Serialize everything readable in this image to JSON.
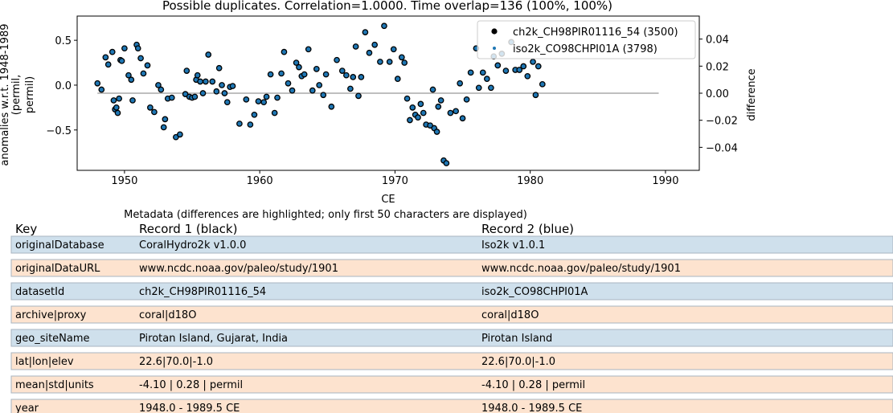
{
  "chart_data": {
    "type": "scatter",
    "title": "Possible duplicates. Correlation=1.0000. Time overlap=136 (100%, 100%)",
    "xlabel": "CE",
    "ylabel_lines": [
      "anomalies w.r.t. 1948-1989",
      "(permil,",
      "permil)"
    ],
    "y2label": "difference",
    "xlim": [
      1946.5,
      1992.5
    ],
    "ylim": [
      -0.95,
      0.77
    ],
    "y2lim": [
      -0.057,
      0.057
    ],
    "xticks": [
      1950,
      1960,
      1970,
      1980,
      1990
    ],
    "yticks": [
      0.5,
      0.0,
      -0.5
    ],
    "ytick_labels": [
      "0.5",
      "0.0",
      "−0.5"
    ],
    "y2ticks": [
      0.04,
      0.02,
      0.0,
      -0.02,
      -0.04
    ],
    "y2tick_labels": [
      "0.04",
      "0.02",
      "0.00",
      "−0.02",
      "−0.04"
    ],
    "legend_position": "top-right",
    "series": [
      {
        "name": "ch2k_CH98PIR01116_54 (3500)",
        "color": "#000000",
        "marker": "circle-outline"
      },
      {
        "name": "iso2k_CO98CHPI01A (3798)",
        "color": "#1f77b4",
        "marker": "dot"
      }
    ],
    "difference_line": {
      "x": [
        1948.0,
        1989.5
      ],
      "y": [
        0.0,
        0.0
      ],
      "color": "#aaaaaa"
    },
    "points": [
      [
        1948.0,
        0.02
      ],
      [
        1948.3,
        -0.05
      ],
      [
        1948.6,
        0.31
      ],
      [
        1948.8,
        0.23
      ],
      [
        1949.1,
        0.37
      ],
      [
        1949.2,
        -0.17
      ],
      [
        1949.3,
        -0.27
      ],
      [
        1949.4,
        -0.25
      ],
      [
        1949.5,
        -0.31
      ],
      [
        1949.6,
        -0.15
      ],
      [
        1949.7,
        0.28
      ],
      [
        1949.8,
        0.27
      ],
      [
        1950.0,
        0.41
      ],
      [
        1950.3,
        0.11
      ],
      [
        1950.5,
        0.06
      ],
      [
        1950.6,
        -0.17
      ],
      [
        1950.9,
        0.45
      ],
      [
        1951.0,
        0.41
      ],
      [
        1951.2,
        0.3
      ],
      [
        1951.4,
        0.13
      ],
      [
        1951.7,
        0.22
      ],
      [
        1951.9,
        -0.25
      ],
      [
        1952.2,
        -0.3
      ],
      [
        1952.5,
        0.0
      ],
      [
        1952.7,
        -0.05
      ],
      [
        1952.9,
        -0.47
      ],
      [
        1953.0,
        -0.38
      ],
      [
        1953.2,
        -0.15
      ],
      [
        1953.5,
        -0.14
      ],
      [
        1953.8,
        -0.58
      ],
      [
        1954.1,
        -0.55
      ],
      [
        1954.5,
        -0.1
      ],
      [
        1954.6,
        0.16
      ],
      [
        1954.8,
        -0.13
      ],
      [
        1955.0,
        -0.14
      ],
      [
        1955.2,
        -0.13
      ],
      [
        1955.3,
        0.06
      ],
      [
        1955.4,
        0.11
      ],
      [
        1955.6,
        0.04
      ],
      [
        1955.8,
        -0.09
      ],
      [
        1956.0,
        0.04
      ],
      [
        1956.2,
        0.34
      ],
      [
        1956.5,
        0.04
      ],
      [
        1956.8,
        -0.07
      ],
      [
        1957.0,
        0.19
      ],
      [
        1957.2,
        0.0
      ],
      [
        1957.4,
        -0.09
      ],
      [
        1957.6,
        -0.19
      ],
      [
        1957.8,
        -0.02
      ],
      [
        1958.0,
        -0.01
      ],
      [
        1958.5,
        -0.43
      ],
      [
        1959.0,
        -0.16
      ],
      [
        1959.3,
        -0.44
      ],
      [
        1959.6,
        -0.33
      ],
      [
        1959.9,
        -0.18
      ],
      [
        1960.3,
        -0.19
      ],
      [
        1960.5,
        -0.13
      ],
      [
        1960.8,
        0.12
      ],
      [
        1961.1,
        -0.31
      ],
      [
        1961.3,
        -0.14
      ],
      [
        1961.6,
        0.13
      ],
      [
        1961.8,
        0.37
      ],
      [
        1962.1,
        0.02
      ],
      [
        1962.4,
        -0.06
      ],
      [
        1962.7,
        0.25
      ],
      [
        1962.9,
        0.2
      ],
      [
        1963.1,
        0.1
      ],
      [
        1963.3,
        0.12
      ],
      [
        1963.6,
        0.4
      ],
      [
        1963.9,
        -0.06
      ],
      [
        1964.2,
        0.18
      ],
      [
        1964.4,
        0.0
      ],
      [
        1964.7,
        -0.11
      ],
      [
        1964.9,
        0.12
      ],
      [
        1965.3,
        -0.24
      ],
      [
        1965.7,
        0.28
      ],
      [
        1966.1,
        0.16
      ],
      [
        1966.4,
        0.11
      ],
      [
        1966.7,
        -0.04
      ],
      [
        1966.9,
        0.09
      ],
      [
        1967.1,
        0.43
      ],
      [
        1967.3,
        -0.12
      ],
      [
        1967.5,
        0.09
      ],
      [
        1967.8,
        0.59
      ],
      [
        1968.1,
        0.36
      ],
      [
        1968.5,
        0.45
      ],
      [
        1968.9,
        0.26
      ],
      [
        1969.2,
        0.66
      ],
      [
        1969.6,
        0.26
      ],
      [
        1969.9,
        0.4
      ],
      [
        1970.2,
        0.07
      ],
      [
        1970.5,
        0.31
      ],
      [
        1970.7,
        0.25
      ],
      [
        1970.9,
        -0.15
      ],
      [
        1971.1,
        -0.39
      ],
      [
        1971.3,
        -0.25
      ],
      [
        1971.5,
        -0.33
      ],
      [
        1971.7,
        -0.36
      ],
      [
        1971.9,
        -0.21
      ],
      [
        1972.1,
        -0.31
      ],
      [
        1972.3,
        -0.44
      ],
      [
        1972.6,
        -0.45
      ],
      [
        1972.8,
        -0.05
      ],
      [
        1972.9,
        -0.48
      ],
      [
        1973.1,
        -0.52
      ],
      [
        1973.2,
        -0.24
      ],
      [
        1973.4,
        -0.17
      ],
      [
        1973.6,
        -0.84
      ],
      [
        1973.8,
        -0.87
      ],
      [
        1974.1,
        -0.31
      ],
      [
        1974.5,
        -0.29
      ],
      [
        1974.8,
        0.02
      ],
      [
        1975.0,
        -0.37
      ],
      [
        1975.3,
        -0.16
      ],
      [
        1975.6,
        0.14
      ],
      [
        1976.0,
        0.41
      ],
      [
        1976.2,
        -0.03
      ],
      [
        1976.5,
        0.14
      ],
      [
        1976.8,
        0.07
      ],
      [
        1977.1,
        -0.03
      ],
      [
        1977.3,
        0.32
      ],
      [
        1977.6,
        0.22
      ],
      [
        1977.9,
        0.35
      ],
      [
        1978.2,
        0.16
      ],
      [
        1978.6,
        0.48
      ],
      [
        1978.9,
        0.17
      ],
      [
        1979.2,
        0.17
      ],
      [
        1979.5,
        0.21
      ],
      [
        1979.8,
        0.1
      ],
      [
        1980.2,
        0.26
      ],
      [
        1980.4,
        -0.11
      ],
      [
        1980.6,
        0.21
      ],
      [
        1980.9,
        0.01
      ]
    ]
  },
  "metadata": {
    "caption": "Metadata (differences are highlighted; only first 50 characters are displayed)",
    "headers": [
      "Key",
      "Record 1 (black)",
      "Record 2 (blue)"
    ],
    "rows": [
      {
        "key": "originalDatabase",
        "r1": "CoralHydro2k v1.0.0",
        "r2": "Iso2k v1.0.1",
        "diff": true
      },
      {
        "key": "originalDataURL",
        "r1": "www.ncdc.noaa.gov/paleo/study/1901",
        "r2": "www.ncdc.noaa.gov/paleo/study/1901",
        "diff": false
      },
      {
        "key": "datasetId",
        "r1": "ch2k_CH98PIR01116_54",
        "r2": "iso2k_CO98CHPI01A",
        "diff": true
      },
      {
        "key": "archive|proxy",
        "r1": "coral|d18O",
        "r2": "coral|d18O",
        "diff": false
      },
      {
        "key": "geo_siteName",
        "r1": "Pirotan Island, Gujarat, India",
        "r2": "Pirotan Island",
        "diff": true
      },
      {
        "key": "lat|lon|elev",
        "r1": "22.6|70.0|-1.0",
        "r2": "22.6|70.0|-1.0",
        "diff": false
      },
      {
        "key": "mean|std|units",
        "r1": "-4.10 | 0.28 | permil",
        "r2": "-4.10 | 0.28 | permil",
        "diff": false
      },
      {
        "key": "year",
        "r1": "1948.0 - 1989.5 CE",
        "r2": "1948.0 - 1989.5 CE",
        "diff": false
      }
    ],
    "colors": {
      "diff": "#cfe0ec",
      "same": "#fde3cf",
      "border": "#a8b4c0"
    }
  }
}
